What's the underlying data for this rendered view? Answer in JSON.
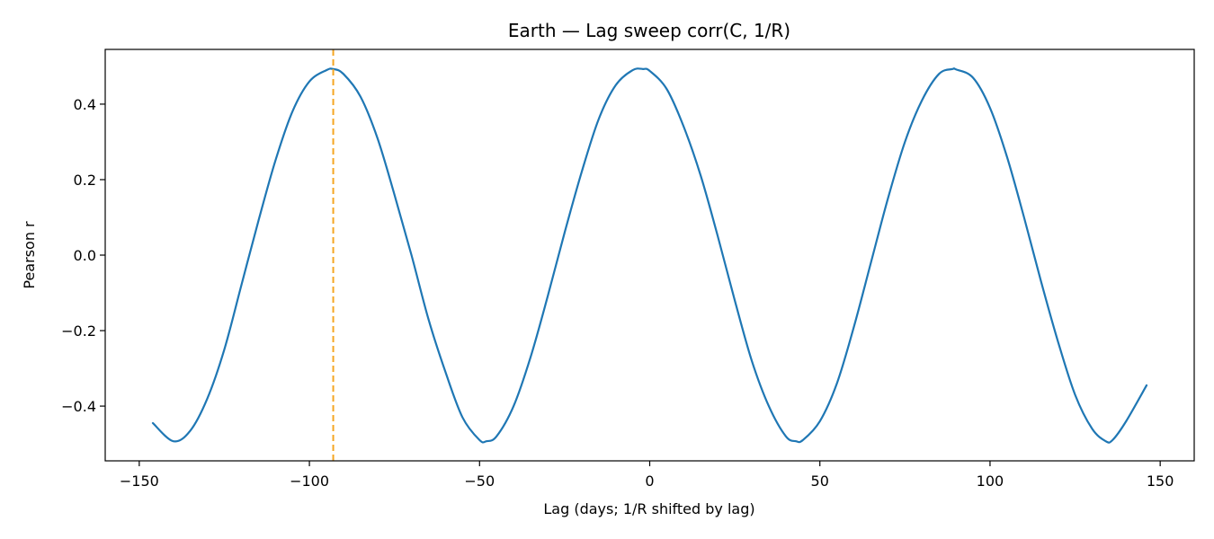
{
  "chart_data": {
    "type": "line",
    "title": "Earth — Lag sweep corr(C, 1/R)",
    "xlabel": "Lag (days; 1/R shifted by lag)",
    "ylabel": "Pearson r",
    "xlim": [
      -160,
      160
    ],
    "ylim": [
      -0.545,
      0.545
    ],
    "x_ticks": [
      -150,
      -100,
      -50,
      0,
      50,
      100,
      150
    ],
    "x_tick_labels": [
      "−150",
      "−100",
      "−50",
      "0",
      "50",
      "100",
      "150"
    ],
    "y_ticks": [
      0.4,
      0.2,
      0.0,
      -0.2,
      -0.4
    ],
    "y_tick_labels": [
      "0.4",
      "0.2",
      "0.0",
      "−0.2",
      "−0.4"
    ],
    "grid": false,
    "series": [
      {
        "color": "#1f77b4",
        "x": [
          -146,
          -140,
          -135,
          -130,
          -125,
          -120,
          -115,
          -110,
          -105,
          -100,
          -95,
          -93,
          -90,
          -85,
          -80,
          -75,
          -70,
          -65,
          -60,
          -55,
          -50,
          -48,
          -45,
          -40,
          -35,
          -30,
          -25,
          -20,
          -15,
          -10,
          -5,
          -2,
          0,
          5,
          10,
          15,
          20,
          25,
          30,
          35,
          40,
          43,
          45,
          50,
          55,
          60,
          65,
          70,
          75,
          80,
          85,
          89,
          90,
          95,
          100,
          105,
          110,
          115,
          120,
          125,
          130,
          134,
          136,
          140,
          146
        ],
        "y": [
          -0.445,
          -0.493,
          -0.465,
          -0.38,
          -0.25,
          -0.08,
          0.09,
          0.25,
          0.38,
          0.46,
          0.49,
          0.493,
          0.48,
          0.42,
          0.31,
          0.16,
          0.0,
          -0.17,
          -0.31,
          -0.43,
          -0.49,
          -0.493,
          -0.48,
          -0.4,
          -0.27,
          -0.11,
          0.06,
          0.22,
          0.36,
          0.45,
          0.49,
          0.493,
          0.488,
          0.44,
          0.34,
          0.21,
          0.05,
          -0.12,
          -0.28,
          -0.4,
          -0.48,
          -0.493,
          -0.49,
          -0.44,
          -0.34,
          -0.19,
          -0.02,
          0.15,
          0.3,
          0.41,
          0.48,
          0.493,
          0.492,
          0.47,
          0.39,
          0.26,
          0.1,
          -0.07,
          -0.23,
          -0.37,
          -0.46,
          -0.493,
          -0.49,
          -0.44,
          -0.345
        ]
      }
    ],
    "vline": {
      "x": -93,
      "color": "#f5a623",
      "style": "dashed"
    }
  }
}
